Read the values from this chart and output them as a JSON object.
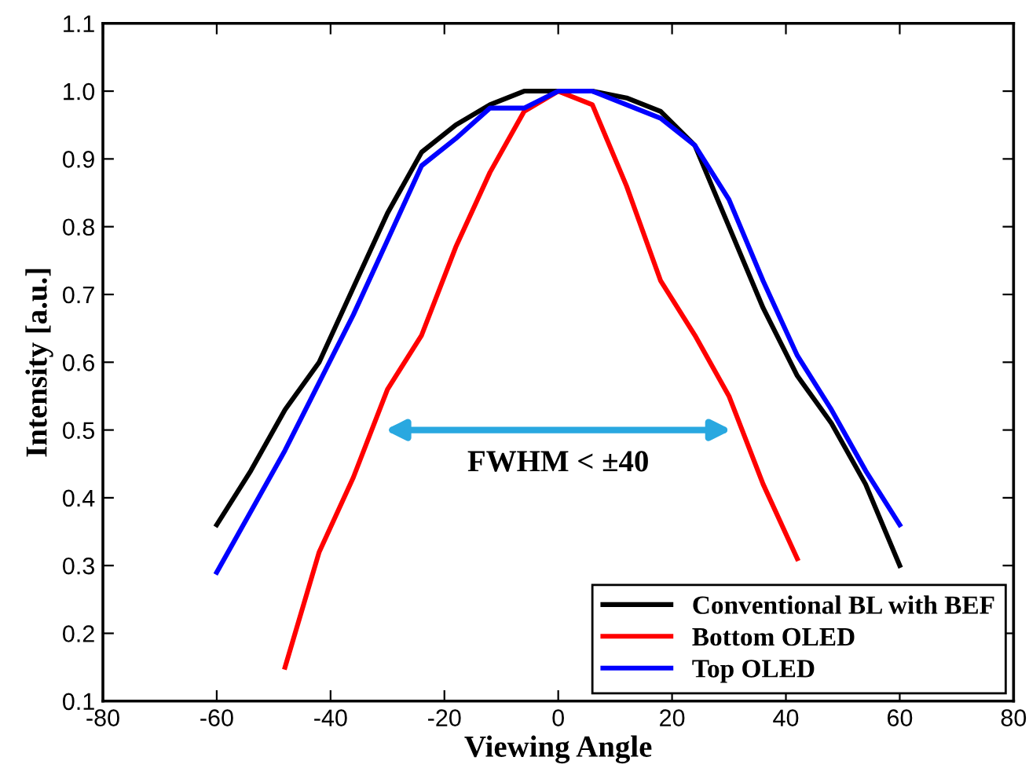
{
  "chart_data": {
    "type": "line",
    "xlabel": "Viewing Angle",
    "ylabel": "Intensity [a.u.]",
    "xlim": [
      -80,
      80
    ],
    "xticks": [
      -80,
      -60,
      -40,
      -20,
      0,
      20,
      40,
      60,
      80
    ],
    "ylim": [
      0.1,
      1.1
    ],
    "yticks": [
      0.1,
      0.2,
      0.3,
      0.4,
      0.5,
      0.6,
      0.7,
      0.8,
      0.9,
      {
        "value": 1,
        "label": "1.0"
      },
      1.1
    ],
    "grid": false,
    "legend": "bottom right",
    "marker": "none",
    "line_style": "solid",
    "annotations": [
      "FWHM < ±40"
    ],
    "series": [
      {
        "name": "Conventional BL with BEF",
        "color": "#000000",
        "x": [
          -60,
          -54,
          -48,
          -42,
          -36,
          -30,
          -24,
          -18,
          -12,
          -6,
          0,
          6,
          12,
          18,
          24,
          30,
          36,
          42,
          48,
          54,
          60
        ],
        "values": [
          0.36,
          0.44,
          0.53,
          0.6,
          0.71,
          0.82,
          0.91,
          0.95,
          0.98,
          1.0,
          1.0,
          1.0,
          0.99,
          0.97,
          0.92,
          0.8,
          0.68,
          0.58,
          0.51,
          0.42,
          0.3
        ]
      },
      {
        "name": "Bottom OLED",
        "color": "#ff0000",
        "x": [
          -48,
          -42,
          -36,
          -30,
          -24,
          -18,
          -12,
          -6,
          0,
          6,
          12,
          18,
          24,
          30,
          36,
          42
        ],
        "values": [
          0.15,
          0.32,
          0.43,
          0.56,
          0.64,
          0.77,
          0.88,
          0.97,
          1.0,
          0.98,
          0.86,
          0.72,
          0.64,
          0.55,
          0.42,
          0.31
        ]
      },
      {
        "name": "Top OLED",
        "color": "#0000ff",
        "x": [
          -60,
          -54,
          -48,
          -42,
          -36,
          -30,
          -24,
          -18,
          -12,
          -6,
          0,
          6,
          12,
          18,
          24,
          30,
          36,
          42,
          48,
          54,
          60
        ],
        "values": [
          0.29,
          0.38,
          0.47,
          0.57,
          0.67,
          0.78,
          0.89,
          0.93,
          0.975,
          0.975,
          1.0,
          1.0,
          0.98,
          0.96,
          0.92,
          0.84,
          0.72,
          0.61,
          0.53,
          0.44,
          0.36
        ]
      }
    ]
  }
}
